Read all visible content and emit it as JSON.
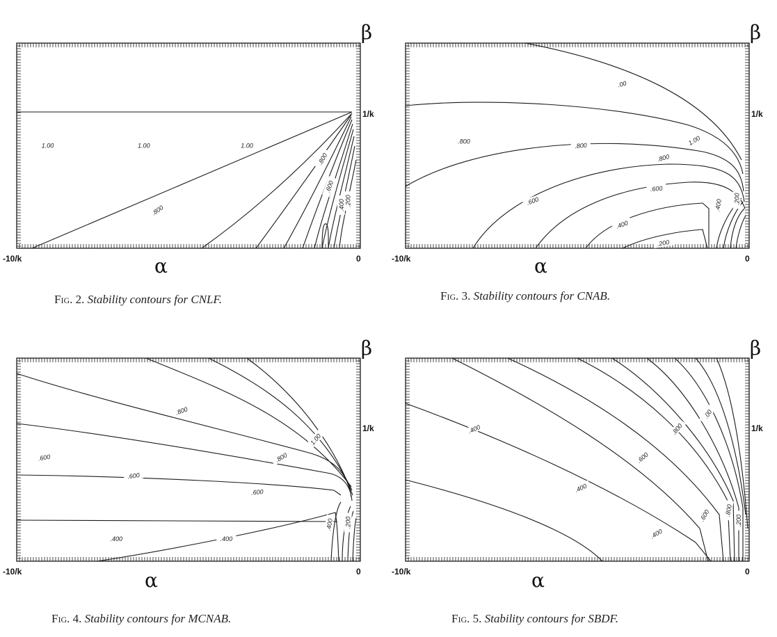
{
  "figures": [
    {
      "figure_label": "Fig. 2.",
      "caption_text": "Stability contours for CNLF.",
      "x_label": "α",
      "y_label": "β",
      "x_left_tick": "-10/k",
      "x_right_tick": "0",
      "y_tick": "1/k"
    },
    {
      "figure_label": "Fig. 3.",
      "caption_text": "Stability contours for CNAB.",
      "x_label": "α",
      "y_label": "β",
      "x_left_tick": "-10/k",
      "x_right_tick": "0",
      "y_tick": "1/k"
    },
    {
      "figure_label": "Fig. 4.",
      "caption_text": "Stability contours for MCNAB.",
      "x_label": "α",
      "y_label": "β",
      "x_left_tick": "-10/k",
      "x_right_tick": "0",
      "y_tick": "1/k"
    },
    {
      "figure_label": "Fig. 5.",
      "caption_text": "Stability contours for SBDF.",
      "x_label": "α",
      "y_label": "β",
      "x_left_tick": "-10/k",
      "x_right_tick": "0",
      "y_tick": "1/k"
    }
  ],
  "chart_data": [
    {
      "type": "contour",
      "x_range": [
        "-10/k",
        "0"
      ],
      "y_tick": "1/k",
      "contour_levels": [
        "1.00",
        ".800",
        ".600",
        ".400"
      ],
      "labels": [
        {
          "text": "1.00",
          "x": -9.1,
          "y": 1.0,
          "rot": 0
        },
        {
          "text": "1.00",
          "x": -6.3,
          "y": 1.0,
          "rot": 0
        },
        {
          "text": "1.00",
          "x": -3.3,
          "y": 1.0,
          "rot": 0
        },
        {
          "text": ".800",
          "x": -5.9,
          "y": 0.37,
          "rot": -35
        },
        {
          "text": ".800",
          "x": -1.1,
          "y": 0.87,
          "rot": -60
        },
        {
          "text": ".600",
          "x": -0.9,
          "y": 0.6,
          "rot": -70
        },
        {
          "text": ".400",
          "x": -0.55,
          "y": 0.42,
          "rot": -90
        },
        {
          "text": ".200",
          "x": -0.35,
          "y": 0.46,
          "rot": -90
        }
      ]
    },
    {
      "type": "contour",
      "x_range": [
        "-10/k",
        "0"
      ],
      "y_tick": "1/k",
      "contour_levels": [
        "1.00",
        ".800",
        ".600",
        ".400",
        ".200"
      ],
      "labels": [
        {
          "text": ".00",
          "x": -3.7,
          "y": 1.6,
          "rot": -15
        },
        {
          "text": "1.00",
          "x": -1.6,
          "y": 1.05,
          "rot": -30
        },
        {
          "text": ".800",
          "x": -8.3,
          "y": 1.04,
          "rot": 0
        },
        {
          "text": ".800",
          "x": -4.9,
          "y": 1.0,
          "rot": -5
        },
        {
          "text": ".800",
          "x": -2.5,
          "y": 0.88,
          "rot": -15
        },
        {
          "text": ".600",
          "x": -2.7,
          "y": 0.58,
          "rot": -5
        },
        {
          "text": ".600",
          "x": -6.3,
          "y": 0.46,
          "rot": -20
        },
        {
          "text": ".400",
          "x": -3.7,
          "y": 0.23,
          "rot": -20
        },
        {
          "text": ".200",
          "x": -2.5,
          "y": 0.05,
          "rot": -10
        },
        {
          "text": ".400",
          "x": -0.9,
          "y": 0.42,
          "rot": -80
        },
        {
          "text": ".200",
          "x": -0.35,
          "y": 0.48,
          "rot": -90
        }
      ]
    },
    {
      "type": "contour",
      "x_range": [
        "-10/k",
        "0"
      ],
      "y_tick": "1/k",
      "contour_levels": [
        "1.00",
        ".800",
        ".600",
        ".400"
      ],
      "labels": [
        {
          "text": ".800",
          "x": -5.2,
          "y": 1.48,
          "rot": -20
        },
        {
          "text": "1.00",
          "x": -1.3,
          "y": 1.2,
          "rot": -50
        },
        {
          "text": ".800",
          "x": -2.3,
          "y": 1.02,
          "rot": -30
        },
        {
          "text": ".600",
          "x": -9.2,
          "y": 1.02,
          "rot": -10
        },
        {
          "text": ".600",
          "x": -6.6,
          "y": 0.84,
          "rot": -8
        },
        {
          "text": ".600",
          "x": -3.0,
          "y": 0.68,
          "rot": -5
        },
        {
          "text": ".400",
          "x": -7.1,
          "y": 0.22,
          "rot": 0
        },
        {
          "text": ".400",
          "x": -3.9,
          "y": 0.22,
          "rot": 0
        },
        {
          "text": ".400",
          "x": -0.9,
          "y": 0.36,
          "rot": -80
        },
        {
          "text": ".200",
          "x": -0.35,
          "y": 0.38,
          "rot": -90
        }
      ]
    },
    {
      "type": "contour",
      "x_range": [
        "-10/k",
        "0"
      ],
      "y_tick": "1/k",
      "contour_levels": [
        ".400",
        ".600",
        ".800",
        "1.00"
      ],
      "labels": [
        {
          "text": ".400",
          "x": -8.0,
          "y": 1.3,
          "rot": -25
        },
        {
          "text": ".400",
          "x": -4.9,
          "y": 0.72,
          "rot": -25
        },
        {
          "text": ".400",
          "x": -2.7,
          "y": 0.27,
          "rot": -30
        },
        {
          "text": ".600",
          "x": -3.1,
          "y": 1.02,
          "rot": -40
        },
        {
          "text": ".600",
          "x": -1.3,
          "y": 0.45,
          "rot": -60
        },
        {
          "text": ".800",
          "x": -2.1,
          "y": 1.3,
          "rot": -50
        },
        {
          "text": ".800",
          "x": -0.6,
          "y": 0.5,
          "rot": -80
        },
        {
          "text": ".00",
          "x": -1.2,
          "y": 1.45,
          "rot": -55
        },
        {
          "text": ".200",
          "x": -0.3,
          "y": 0.4,
          "rot": -90
        }
      ]
    }
  ]
}
